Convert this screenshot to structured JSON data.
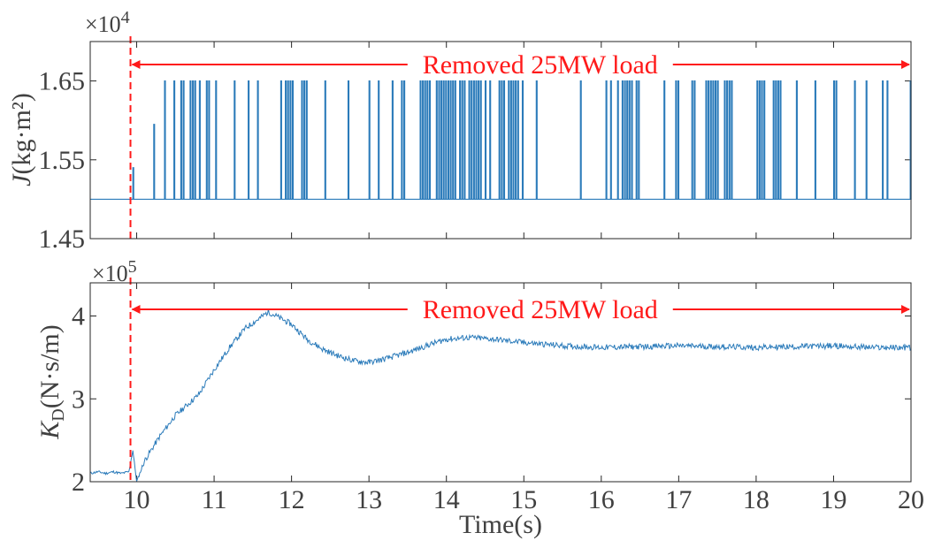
{
  "chart_data": [
    {
      "type": "line",
      "panel": "top",
      "ylabel_symbol": "J",
      "ylabel_unit": "(kg·m²)",
      "exponent_label": "×10",
      "exponent_power": "4",
      "xlim": [
        9.4,
        20
      ],
      "ylim": [
        1.45,
        1.7
      ],
      "yticks": [
        1.45,
        1.55,
        1.65
      ],
      "ytick_labels": [
        "1.45",
        "1.55",
        "1.65"
      ],
      "xticks": [
        10,
        11,
        12,
        13,
        14,
        15,
        16,
        17,
        18,
        19,
        20
      ],
      "series_color": "#2b7bba",
      "baseline": 1.5,
      "pulse_peak": 1.65,
      "event_x": 9.92,
      "annotation": "Removed 25MW load",
      "annotation_color": "#ff1a1a",
      "grid": false
    },
    {
      "type": "line",
      "panel": "bottom",
      "ylabel_symbol": "K",
      "ylabel_sub": "D",
      "ylabel_unit": "(N·s/m)",
      "exponent_label": "×10",
      "exponent_power": "5",
      "xlabel": "Time(s)",
      "xlim": [
        9.4,
        20
      ],
      "ylim": [
        2,
        4.4
      ],
      "yticks": [
        2,
        3,
        4
      ],
      "ytick_labels": [
        "2",
        "3",
        "4"
      ],
      "xticks": [
        10,
        11,
        12,
        13,
        14,
        15,
        16,
        17,
        18,
        19,
        20
      ],
      "xtick_labels": [
        "10",
        "11",
        "12",
        "13",
        "14",
        "15",
        "16",
        "17",
        "18",
        "19",
        "20"
      ],
      "series_color": "#2b7bba",
      "x": [
        9.4,
        9.5,
        9.6,
        9.7,
        9.8,
        9.9,
        9.95,
        10.0,
        10.1,
        10.3,
        10.5,
        10.8,
        11.0,
        11.2,
        11.4,
        11.6,
        11.7,
        11.8,
        12.0,
        12.2,
        12.4,
        12.6,
        12.8,
        13.0,
        13.2,
        13.5,
        13.8,
        14.0,
        14.3,
        14.6,
        15.0,
        15.5,
        16.0,
        16.5,
        17.0,
        17.5,
        18.0,
        18.5,
        19.0,
        19.5,
        20.0
      ],
      "y": [
        2.1,
        2.12,
        2.1,
        2.12,
        2.1,
        2.12,
        2.38,
        2.0,
        2.25,
        2.55,
        2.8,
        3.05,
        3.35,
        3.62,
        3.85,
        3.98,
        4.05,
        4.0,
        3.9,
        3.72,
        3.6,
        3.52,
        3.46,
        3.44,
        3.48,
        3.56,
        3.66,
        3.72,
        3.74,
        3.72,
        3.68,
        3.64,
        3.62,
        3.63,
        3.64,
        3.63,
        3.62,
        3.63,
        3.64,
        3.62,
        3.62
      ],
      "event_x": 9.92,
      "annotation": "Removed 25MW load",
      "annotation_color": "#ff1a1a",
      "grid": false
    }
  ]
}
